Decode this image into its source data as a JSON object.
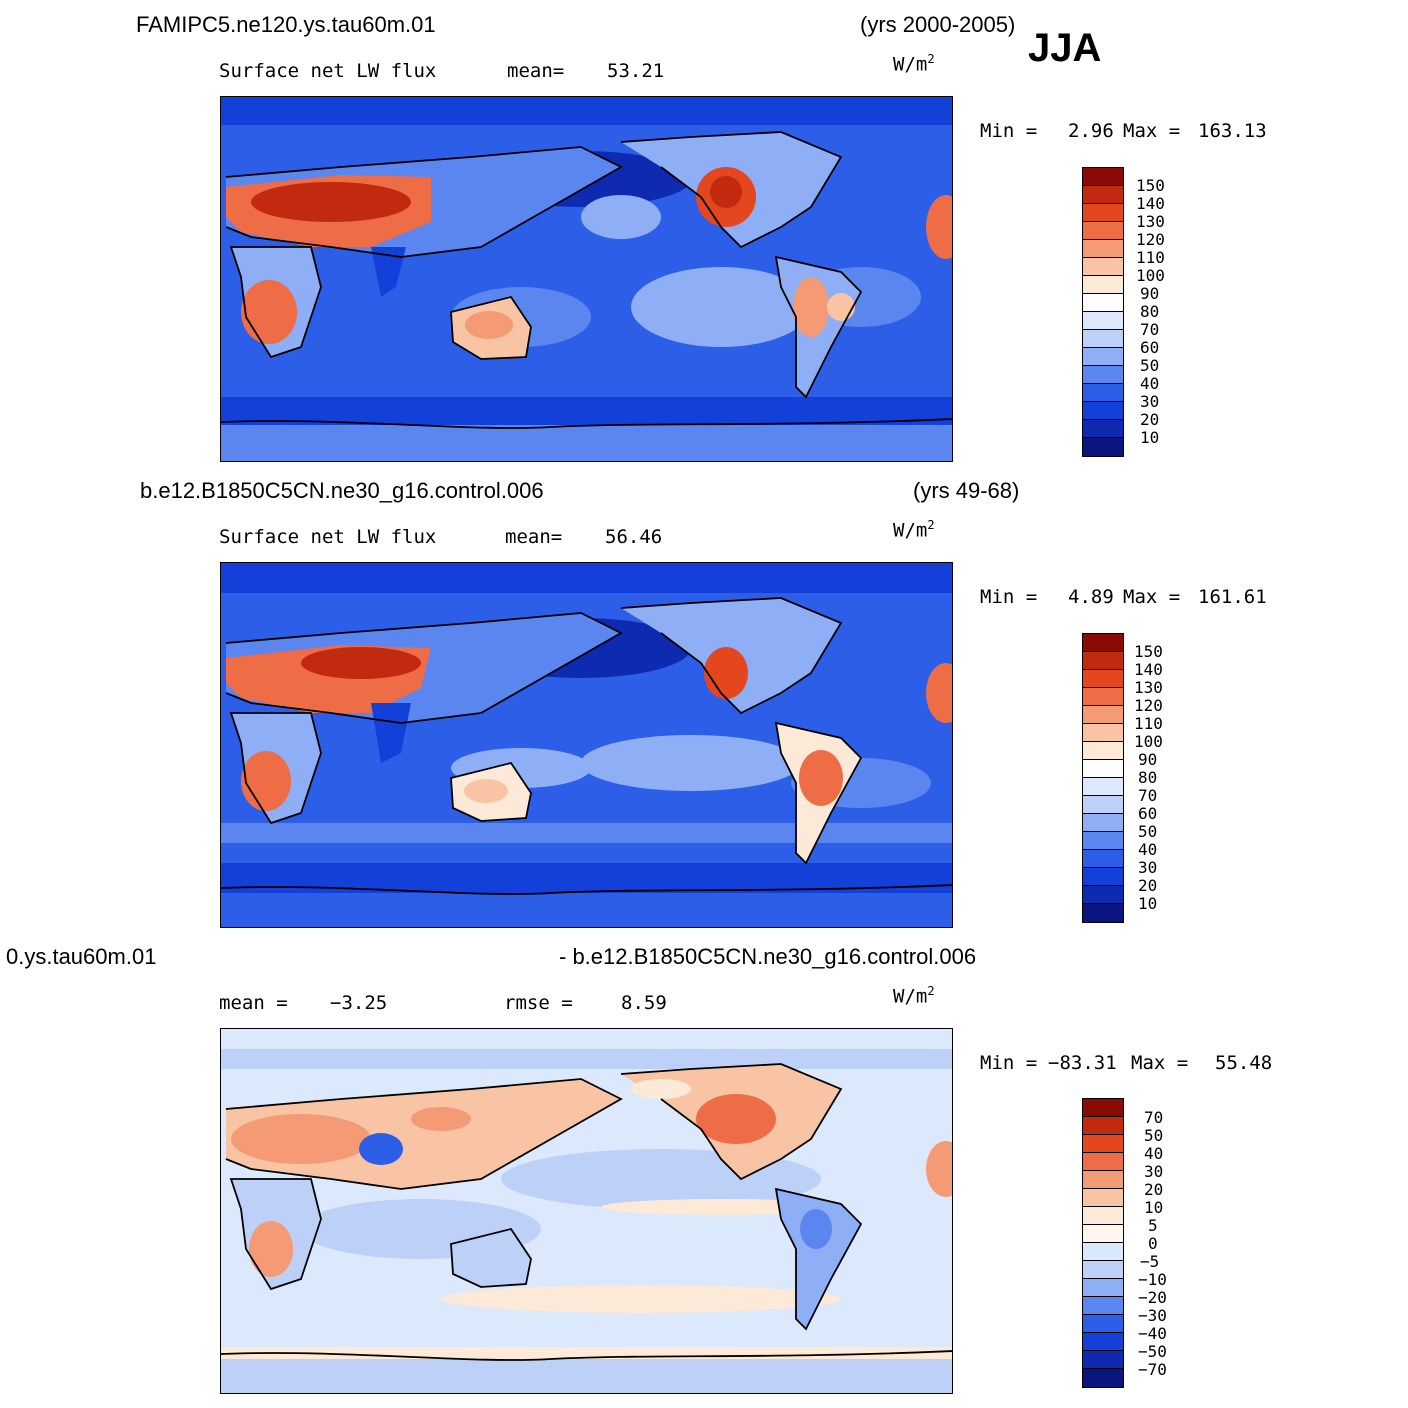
{
  "season": "JJA",
  "colors": {
    "blue10": "#0a1580",
    "blue20": "#0d2ab0",
    "blue30": "#1340d8",
    "blue40": "#2c5ee8",
    "blue50": "#5b86f0",
    "blue60": "#8eaef5",
    "blue70": "#bcd0f8",
    "blue80": "#dce8fb",
    "cream90": "#fde9d8",
    "peach100": "#f9c4a4",
    "salmon110": "#f49a74",
    "orange120": "#ee6c46",
    "orange130": "#e4461e",
    "red140": "#c22a10",
    "red150": "#8a0a06"
  },
  "panels": [
    {
      "case": "FAMIPC5.ne120.ys.tau60m.01",
      "years": "(yrs 2000-2005)",
      "variable": "Surface net LW flux",
      "stat1_label": "mean=",
      "stat1_value": "53.21",
      "unit": "W/m",
      "unit_sup": "2",
      "min_label": "Min =",
      "min_value": "2.96",
      "max_label": "Max =",
      "max_value": "163.13",
      "levels": [
        "150",
        "140",
        "130",
        "120",
        "110",
        "100",
        "90",
        "80",
        "70",
        "60",
        "50",
        "40",
        "30",
        "20",
        "10"
      ]
    },
    {
      "case": "b.e12.B1850C5CN.ne30_g16.control.006",
      "years": "(yrs 49-68)",
      "variable": "Surface net LW flux",
      "stat1_label": "mean=",
      "stat1_value": "56.46",
      "unit": "W/m",
      "unit_sup": "2",
      "min_label": "Min =",
      "min_value": "4.89",
      "max_label": "Max =",
      "max_value": "161.61",
      "levels": [
        "150",
        "140",
        "130",
        "120",
        "110",
        "100",
        "90",
        "80",
        "70",
        "60",
        "50",
        "40",
        "30",
        "20",
        "10"
      ]
    },
    {
      "case_left": "0.ys.tau60m.01",
      "case_right": "- b.e12.B1850C5CN.ne30_g16.control.006",
      "stat1_label": "mean =",
      "stat1_value": "−3.25",
      "stat2_label": "rmse =",
      "stat2_value": "8.59",
      "unit": "W/m",
      "unit_sup": "2",
      "min_label": "Min =",
      "min_value": "−83.31",
      "max_label": "Max =",
      "max_value": "55.48",
      "levels": [
        "70",
        "50",
        "40",
        "30",
        "20",
        "10",
        "5",
        "0",
        "−5",
        "−10",
        "−20",
        "−30",
        "−40",
        "−50",
        "−70"
      ]
    }
  ]
}
